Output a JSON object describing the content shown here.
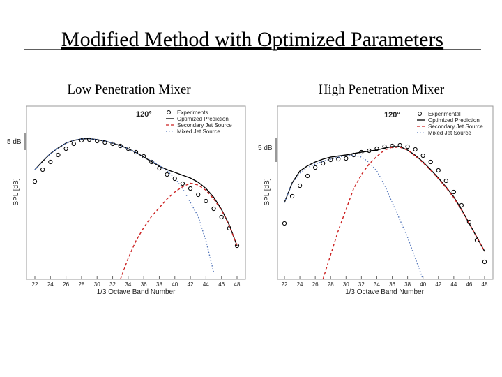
{
  "title": "Modified Method with Optimized Parameters",
  "chart_data": [
    {
      "type": "line",
      "subtitle": "Low Penetration Mixer",
      "annotation": "120°",
      "scale_label": "5 dB",
      "x_label": "1/3 Octave Band Number",
      "y_label": "SPL [dB]",
      "x": [
        22,
        23,
        24,
        25,
        26,
        27,
        28,
        29,
        30,
        31,
        32,
        33,
        34,
        35,
        36,
        37,
        38,
        39,
        40,
        41,
        42,
        43,
        44,
        45,
        46,
        47,
        48
      ],
      "xlim": [
        22,
        48
      ],
      "xticks": [
        22,
        24,
        26,
        28,
        30,
        32,
        34,
        36,
        38,
        40,
        42,
        44,
        46,
        48
      ],
      "ylim": [
        0,
        49
      ],
      "series": [
        {
          "name": "Experiments",
          "color": "#000000",
          "style": "markers",
          "values": [
            28,
            31.4,
            33.6,
            35.6,
            37.4,
            38.8,
            39.8,
            40,
            39.6,
            39.2,
            38.8,
            38.2,
            37.4,
            36.4,
            35.2,
            33.6,
            31.8,
            30,
            28.8,
            27.4,
            26,
            24.2,
            22.4,
            20.2,
            17.8,
            14.6,
            9.6
          ]
        },
        {
          "name": "Optimized Prediction",
          "color": "#000000",
          "style": "solid",
          "values": [
            31.4,
            33.8,
            36,
            37.6,
            39,
            39.8,
            40.2,
            40.3,
            40,
            39.6,
            39,
            38.3,
            37.4,
            36.3,
            35,
            33.7,
            32.4,
            31.4,
            30.6,
            29.8,
            29,
            27.8,
            26,
            23.5,
            20,
            15.6,
            9.6
          ]
        },
        {
          "name": "Secondary Jet Source",
          "color": "#cc2222",
          "style": "dashed",
          "values": [
            null,
            null,
            null,
            null,
            null,
            null,
            null,
            null,
            null,
            null,
            null,
            0,
            6,
            11,
            14.8,
            18,
            20.5,
            23,
            25,
            26.5,
            27.5,
            27,
            25.5,
            23,
            19.8,
            15.4,
            9.6
          ]
        },
        {
          "name": "Mixed Jet Source",
          "color": "#5577bb",
          "style": "dashdot",
          "values": [
            31.4,
            33.8,
            36,
            37.6,
            39,
            39.8,
            40.2,
            40.3,
            40,
            39.6,
            39,
            38.3,
            37.4,
            36.3,
            35,
            34,
            32.6,
            31,
            29,
            26,
            22,
            18,
            11,
            2,
            null,
            null,
            null
          ]
        }
      ]
    },
    {
      "type": "line",
      "subtitle": "High Penetration Mixer",
      "annotation": "120°",
      "scale_label": "5 dB",
      "x_label": "1/3 Octave Band Number",
      "y_label": "SPL [dB]",
      "x": [
        22,
        23,
        24,
        25,
        26,
        27,
        28,
        29,
        30,
        31,
        32,
        33,
        34,
        35,
        36,
        37,
        38,
        39,
        40,
        41,
        42,
        43,
        44,
        45,
        46,
        47,
        48
      ],
      "xlim": [
        22,
        48
      ],
      "xticks": [
        22,
        24,
        26,
        28,
        30,
        32,
        34,
        36,
        38,
        40,
        42,
        44,
        46,
        48
      ],
      "ylim": [
        0,
        49
      ],
      "series": [
        {
          "name": "Experimental",
          "color": "#000000",
          "style": "markers",
          "values": [
            16,
            23.8,
            26.8,
            29.6,
            32,
            33.2,
            34.2,
            34.4,
            34.6,
            35.6,
            36.4,
            36.8,
            37.4,
            38,
            38.2,
            38.4,
            38,
            37.2,
            35.4,
            33.6,
            31.2,
            28.2,
            25,
            21.2,
            16.4,
            11.2,
            5
          ]
        },
        {
          "name": "Optimized Prediction",
          "color": "#000000",
          "style": "solid",
          "values": [
            22,
            27.6,
            31,
            32.5,
            33.6,
            34.4,
            35,
            35.3,
            35.6,
            36,
            36.4,
            36.7,
            37,
            37.6,
            38,
            38,
            37,
            35.5,
            33.6,
            31.4,
            29,
            26.4,
            23.6,
            20,
            16,
            12,
            8
          ]
        },
        {
          "name": "Secondary Jet Source",
          "color": "#cc2222",
          "style": "dashed",
          "values": [
            null,
            null,
            null,
            null,
            null,
            0,
            7,
            14,
            20,
            26,
            30,
            33,
            35.2,
            37,
            37.8,
            37.8,
            37,
            35.3,
            33.4,
            31.2,
            28.8,
            26.2,
            23.4,
            19.8,
            16,
            12,
            8
          ]
        },
        {
          "name": "Mixed Jet Source",
          "color": "#5577bb",
          "style": "dashdot",
          "values": [
            22,
            27.4,
            30.4,
            32,
            33,
            33.8,
            34.4,
            35,
            35.4,
            35.5,
            35,
            33.5,
            31,
            27,
            22,
            17,
            12,
            6,
            0,
            null,
            null,
            null,
            null,
            null,
            null,
            null,
            null
          ]
        }
      ]
    }
  ]
}
